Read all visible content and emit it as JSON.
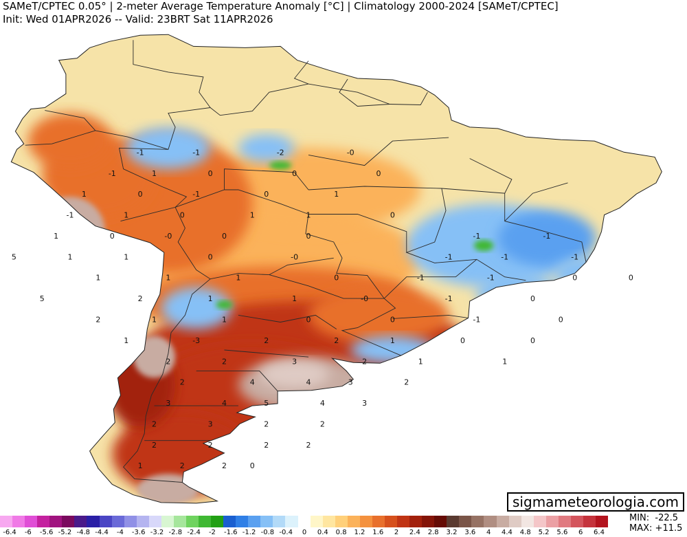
{
  "header": {
    "title": "SAMeT/CPTEC 0.05° | 2-meter Average Temperature Anomaly [°C] | Climatology 2000-2024 [SAMeT/CPTEC]",
    "subtitle": "Init: Wed 01APR2026 -- Valid: 23BRT Sat 11APR2026"
  },
  "branding": {
    "label": "sigmameteorologia.com"
  },
  "stats": {
    "min_label": "MIN:",
    "min_value": "-22.5",
    "max_label": "MAX:",
    "max_value": "+11.5"
  },
  "colorbar": {
    "colors": [
      "#f7a8f0",
      "#f07ae6",
      "#e04ed6",
      "#c4219f",
      "#a0137f",
      "#7a0a5e",
      "#4a1a8a",
      "#2a1fa6",
      "#4a45c4",
      "#6a6ad8",
      "#9090e6",
      "#b4b4f0",
      "#d8d8fa",
      "#d8f6d2",
      "#a6e69c",
      "#6fd35f",
      "#3fb833",
      "#22a014",
      "#1a5fd0",
      "#2f7fe6",
      "#5aa0f0",
      "#86c0f6",
      "#b2daf8",
      "#dcf2fc",
      "#ffffff",
      "#fff6c8",
      "#ffe6a0",
      "#ffd07a",
      "#fbb25a",
      "#f4913e",
      "#e8702c",
      "#d6501c",
      "#c03414",
      "#a2200c",
      "#841408",
      "#650c05",
      "#5a3a30",
      "#7a5548",
      "#967264",
      "#b08e82",
      "#c8aca2",
      "#dfcbc4",
      "#f2e6e2",
      "#f4c6c8",
      "#eba0a4",
      "#e07a80",
      "#d4555d",
      "#c5333c",
      "#b3141e"
    ],
    "ticks": [
      "-6.4",
      "-6",
      "-5.6",
      "-5.2",
      "-4.8",
      "-4.4",
      "-4",
      "-3.6",
      "-3.2",
      "-2.8",
      "-2.4",
      "-2",
      "-1.6",
      "-1.2",
      "-0.8",
      "-0.4",
      "0",
      "0.4",
      "0.8",
      "1.2",
      "1.6",
      "2",
      "2.4",
      "2.8",
      "3.2",
      "3.6",
      "4",
      "4.4",
      "4.8",
      "5.2",
      "5.6",
      "6",
      "6.4"
    ]
  },
  "map": {
    "region": "South America",
    "land_color": "#f6e3a8",
    "ocean_color": "#ffffff",
    "anomaly_fields": [
      {
        "level": "0.8",
        "color": "#fbb25a"
      },
      {
        "level": "1.6",
        "color": "#e8702c"
      },
      {
        "level": "2.4",
        "color": "#c03414"
      },
      {
        "level": "2.8",
        "color": "#a2200c"
      },
      {
        "level": "4",
        "color": "#c8aca2"
      },
      {
        "level": "5.2",
        "color": "#dfcbc4"
      },
      {
        "level": "-0.8",
        "color": "#86c0f6"
      },
      {
        "level": "-1.2",
        "color": "#5aa0f0"
      },
      {
        "level": "-2",
        "color": "#3fb833"
      }
    ],
    "value_labels": [
      {
        "t": "-1",
        "x": -72,
        "y": -5
      },
      {
        "t": "-1",
        "x": -68,
        "y": -5
      },
      {
        "t": "-2",
        "x": -62,
        "y": -5
      },
      {
        "t": "-0",
        "x": -57,
        "y": -5
      },
      {
        "t": "-1",
        "x": -74,
        "y": -8
      },
      {
        "t": "1",
        "x": -71,
        "y": -8
      },
      {
        "t": "0",
        "x": -67,
        "y": -8
      },
      {
        "t": "0",
        "x": -61,
        "y": -8
      },
      {
        "t": "0",
        "x": -55,
        "y": -8
      },
      {
        "t": "1",
        "x": -76,
        "y": -11
      },
      {
        "t": "0",
        "x": -72,
        "y": -11
      },
      {
        "t": "-1",
        "x": -68,
        "y": -11
      },
      {
        "t": "0",
        "x": -63,
        "y": -11
      },
      {
        "t": "1",
        "x": -58,
        "y": -11
      },
      {
        "t": "-1",
        "x": -77,
        "y": -14
      },
      {
        "t": "1",
        "x": -73,
        "y": -14
      },
      {
        "t": "0",
        "x": -69,
        "y": -14
      },
      {
        "t": "1",
        "x": -64,
        "y": -14
      },
      {
        "t": "1",
        "x": -60,
        "y": -14
      },
      {
        "t": "0",
        "x": -54,
        "y": -14
      },
      {
        "t": "1",
        "x": -78,
        "y": -17
      },
      {
        "t": "0",
        "x": -74,
        "y": -17
      },
      {
        "t": "-0",
        "x": -70,
        "y": -17
      },
      {
        "t": "0",
        "x": -66,
        "y": -17
      },
      {
        "t": "0",
        "x": -60,
        "y": -17
      },
      {
        "t": "-1",
        "x": -48,
        "y": -17
      },
      {
        "t": "-1",
        "x": -43,
        "y": -17
      },
      {
        "t": "5",
        "x": -81,
        "y": -20
      },
      {
        "t": "1",
        "x": -77,
        "y": -20
      },
      {
        "t": "1",
        "x": -73,
        "y": -20
      },
      {
        "t": "0",
        "x": -67,
        "y": -20
      },
      {
        "t": "-0",
        "x": -61,
        "y": -20
      },
      {
        "t": "-1",
        "x": -50,
        "y": -20
      },
      {
        "t": "-1",
        "x": -46,
        "y": -20
      },
      {
        "t": "-1",
        "x": -41,
        "y": -20
      },
      {
        "t": "1",
        "x": -75,
        "y": -23
      },
      {
        "t": "1",
        "x": -70,
        "y": -23
      },
      {
        "t": "1",
        "x": -65,
        "y": -23
      },
      {
        "t": "0",
        "x": -58,
        "y": -23
      },
      {
        "t": "-1",
        "x": -52,
        "y": -23
      },
      {
        "t": "-1",
        "x": -47,
        "y": -23
      },
      {
        "t": "0",
        "x": -41,
        "y": -23
      },
      {
        "t": "0",
        "x": -37,
        "y": -23
      },
      {
        "t": "5",
        "x": -79,
        "y": -26
      },
      {
        "t": "2",
        "x": -72,
        "y": -26
      },
      {
        "t": "1",
        "x": -67,
        "y": -26
      },
      {
        "t": "1",
        "x": -61,
        "y": -26
      },
      {
        "t": "-0",
        "x": -56,
        "y": -26
      },
      {
        "t": "-1",
        "x": -50,
        "y": -26
      },
      {
        "t": "0",
        "x": -44,
        "y": -26
      },
      {
        "t": "2",
        "x": -75,
        "y": -29
      },
      {
        "t": "1",
        "x": -71,
        "y": -29
      },
      {
        "t": "1",
        "x": -66,
        "y": -29
      },
      {
        "t": "0",
        "x": -60,
        "y": -29
      },
      {
        "t": "0",
        "x": -54,
        "y": -29
      },
      {
        "t": "-1",
        "x": -48,
        "y": -29
      },
      {
        "t": "0",
        "x": -42,
        "y": -29
      },
      {
        "t": "1",
        "x": -73,
        "y": -32
      },
      {
        "t": "-3",
        "x": -68,
        "y": -32
      },
      {
        "t": "2",
        "x": -63,
        "y": -32
      },
      {
        "t": "2",
        "x": -58,
        "y": -32
      },
      {
        "t": "1",
        "x": -54,
        "y": -32
      },
      {
        "t": "0",
        "x": -49,
        "y": -32
      },
      {
        "t": "0",
        "x": -44,
        "y": -32
      },
      {
        "t": "2",
        "x": -70,
        "y": -35
      },
      {
        "t": "2",
        "x": -66,
        "y": -35
      },
      {
        "t": "3",
        "x": -61,
        "y": -35
      },
      {
        "t": "2",
        "x": -56,
        "y": -35
      },
      {
        "t": "1",
        "x": -52,
        "y": -35
      },
      {
        "t": "1",
        "x": -46,
        "y": -35
      },
      {
        "t": "2",
        "x": -69,
        "y": -38
      },
      {
        "t": "4",
        "x": -64,
        "y": -38
      },
      {
        "t": "4",
        "x": -60,
        "y": -38
      },
      {
        "t": "3",
        "x": -57,
        "y": -38
      },
      {
        "t": "2",
        "x": -53,
        "y": -38
      },
      {
        "t": "3",
        "x": -70,
        "y": -41
      },
      {
        "t": "4",
        "x": -66,
        "y": -41
      },
      {
        "t": "5",
        "x": -63,
        "y": -41
      },
      {
        "t": "4",
        "x": -59,
        "y": -41
      },
      {
        "t": "3",
        "x": -56,
        "y": -41
      },
      {
        "t": "2",
        "x": -71,
        "y": -44
      },
      {
        "t": "3",
        "x": -67,
        "y": -44
      },
      {
        "t": "2",
        "x": -63,
        "y": -44
      },
      {
        "t": "2",
        "x": -59,
        "y": -44
      },
      {
        "t": "2",
        "x": -71,
        "y": -47
      },
      {
        "t": "2",
        "x": -67,
        "y": -47
      },
      {
        "t": "2",
        "x": -63,
        "y": -47
      },
      {
        "t": "2",
        "x": -60,
        "y": -47
      },
      {
        "t": "1",
        "x": -72,
        "y": -50
      },
      {
        "t": "2",
        "x": -69,
        "y": -50
      },
      {
        "t": "2",
        "x": -66,
        "y": -50
      },
      {
        "t": "0",
        "x": -64,
        "y": -50
      }
    ]
  }
}
